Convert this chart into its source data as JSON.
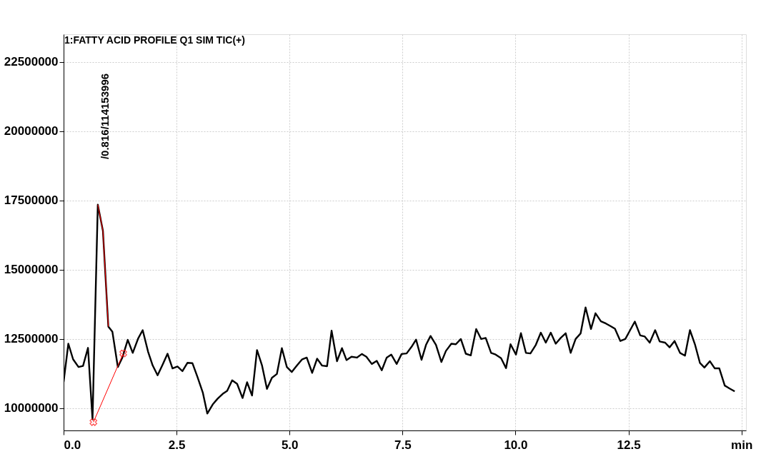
{
  "chart_data": {
    "type": "line",
    "title": "1:FATTY ACID PROFILE Q1 SIM TIC(+)",
    "annotations": [
      "/0.816/114153996"
    ],
    "xlim": [
      0,
      15.1
    ],
    "ylim": [
      9200000,
      23500000
    ],
    "xticks": [
      {
        "value": 0,
        "label": "0.0"
      },
      {
        "value": 2.5,
        "label": "2.5"
      },
      {
        "value": 5,
        "label": "5.0"
      },
      {
        "value": 7.5,
        "label": "7.5"
      },
      {
        "value": 10,
        "label": "10.0"
      },
      {
        "value": 12.5,
        "label": "12.5"
      },
      {
        "value": 15,
        "label": "min"
      }
    ],
    "yticks": [
      10000000,
      12500000,
      15000000,
      17500000,
      20000000,
      22500000
    ],
    "grid": true,
    "series": [
      {
        "color": "#000000",
        "x": [
          0,
          0.105,
          0.21,
          0.33,
          0.43,
          0.54,
          0.64,
          0.757,
          0.87,
          0.99,
          1.08,
          1.2,
          1.3,
          1.42,
          1.53,
          1.65,
          1.75,
          1.87,
          1.97,
          2.08,
          2.19,
          2.3,
          2.41,
          2.52,
          2.63,
          2.74,
          2.85,
          2.96,
          3.08,
          3.18,
          3.3,
          3.41,
          3.52,
          3.62,
          3.73,
          3.84,
          3.96,
          4.06,
          4.17,
          4.28,
          4.39,
          4.5,
          4.61,
          4.72,
          4.83,
          4.94,
          5.05,
          5.16,
          5.28,
          5.38,
          5.5,
          5.61,
          5.72,
          5.83,
          5.93,
          6.05,
          6.16,
          6.26,
          6.37,
          6.49,
          6.6,
          6.7,
          6.82,
          6.93,
          7.04,
          7.15,
          7.25,
          7.37,
          7.48,
          7.59,
          7.7,
          7.8,
          7.92,
          8.02,
          8.12,
          8.24,
          8.36,
          8.46,
          8.58,
          8.68,
          8.79,
          8.9,
          9.01,
          9.13,
          9.24,
          9.34,
          9.46,
          9.56,
          9.68,
          9.79,
          9.89,
          10.01,
          10.12,
          10.23,
          10.33,
          10.45,
          10.56,
          10.67,
          10.78,
          10.89,
          11.0,
          11.11,
          11.22,
          11.33,
          11.44,
          11.55,
          11.67,
          11.77,
          11.89,
          12.0,
          12.1,
          12.2,
          12.32,
          12.43,
          12.53,
          12.64,
          12.76,
          12.86,
          12.97,
          13.09,
          13.19,
          13.31,
          13.41,
          13.52,
          13.64,
          13.75,
          13.86,
          13.97,
          14.08,
          14.18,
          14.3,
          14.41,
          14.51,
          14.63,
          14.73,
          14.85
        ],
        "values": [
          10950000,
          12330000,
          11770000,
          11490000,
          11530000,
          12180000,
          9600000,
          17350000,
          16410000,
          12950000,
          12760000,
          11490000,
          11830000,
          12470000,
          12000000,
          12520000,
          12820000,
          12040000,
          11550000,
          11190000,
          11570000,
          11970000,
          11440000,
          11510000,
          11340000,
          11640000,
          11630000,
          11140000,
          10570000,
          9810000,
          10140000,
          10350000,
          10520000,
          10630000,
          11010000,
          10880000,
          10370000,
          10940000,
          10460000,
          12100000,
          11550000,
          10700000,
          11100000,
          11240000,
          12170000,
          11490000,
          11310000,
          11540000,
          11770000,
          11830000,
          11280000,
          11790000,
          11540000,
          11520000,
          12800000,
          11700000,
          12170000,
          11740000,
          11860000,
          11830000,
          11960000,
          11860000,
          11600000,
          11710000,
          11370000,
          11830000,
          11940000,
          11600000,
          11960000,
          11980000,
          12220000,
          12480000,
          11750000,
          12290000,
          12610000,
          12290000,
          11670000,
          12070000,
          12330000,
          12310000,
          12500000,
          11970000,
          11910000,
          12860000,
          12500000,
          12540000,
          12000000,
          11940000,
          11810000,
          11450000,
          12310000,
          11940000,
          12710000,
          12000000,
          11980000,
          12290000,
          12730000,
          12370000,
          12730000,
          12330000,
          12540000,
          12710000,
          12000000,
          12500000,
          12700000,
          13640000,
          12860000,
          13430000,
          13140000,
          13060000,
          12970000,
          12870000,
          12430000,
          12500000,
          12800000,
          13130000,
          12630000,
          12590000,
          12370000,
          12820000,
          12410000,
          12370000,
          12200000,
          12430000,
          12000000,
          11900000,
          12820000,
          12310000,
          11640000,
          11470000,
          11700000,
          11440000,
          11440000,
          10820000,
          10720000,
          10610000
        ]
      },
      {
        "color": "#ff0000",
        "x": [
          0.757,
          0.87,
          0.99
        ],
        "values": [
          17350000,
          16410000,
          12950000
        ]
      },
      {
        "color": "#ff0000",
        "x": [
          0.66,
          1.32
        ],
        "values": [
          9500000,
          11980000
        ],
        "marker": "cross"
      }
    ]
  }
}
